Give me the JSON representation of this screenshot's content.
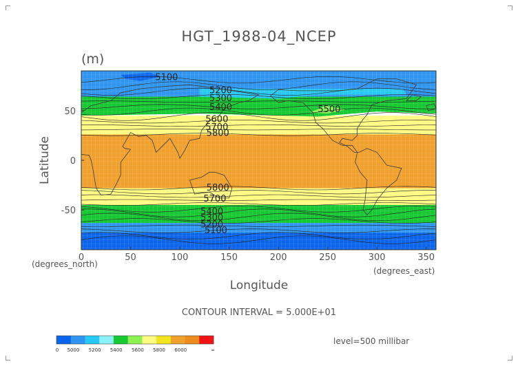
{
  "chart_data": {
    "type": "heatmap",
    "title": "HGT_1988-04_NCEP",
    "units": "(m)",
    "xlabel": "Longitude",
    "ylabel": "Latitude",
    "x_unit_label": "(degrees_east)",
    "y_unit_label": "(degrees_north)",
    "xlim": [
      0,
      360
    ],
    "ylim": [
      -90,
      90
    ],
    "x_ticks": [
      0,
      50,
      100,
      150,
      200,
      250,
      300,
      350
    ],
    "y_ticks": [
      50,
      0,
      -50
    ],
    "contour_interval_text": "CONTOUR INTERVAL = 5.000E+01",
    "level_text": "level=500 millibar",
    "contour_labels": [
      {
        "value": "5100",
        "lon": 75,
        "lat": 84
      },
      {
        "value": "5200",
        "lon": 130,
        "lat": 71
      },
      {
        "value": "5300",
        "lon": 130,
        "lat": 63
      },
      {
        "value": "5400",
        "lon": 130,
        "lat": 54
      },
      {
        "value": "5500",
        "lon": 240,
        "lat": 52
      },
      {
        "value": "5600",
        "lon": 126,
        "lat": 42
      },
      {
        "value": "5700",
        "lon": 126,
        "lat": 34
      },
      {
        "value": "5800",
        "lon": 127,
        "lat": 28
      },
      {
        "value": "5800",
        "lon": 127,
        "lat": -27
      },
      {
        "value": "5700",
        "lon": 124,
        "lat": -38
      },
      {
        "value": "5400",
        "lon": 121,
        "lat": -51
      },
      {
        "value": "5300",
        "lon": 121,
        "lat": -57
      },
      {
        "value": "5200",
        "lon": 121,
        "lat": -64
      },
      {
        "value": "5100",
        "lon": 125,
        "lat": -70
      }
    ],
    "colorbar": {
      "colors": [
        "#0a64ec",
        "#2f95f0",
        "#28c8f4",
        "#8cf2f6",
        "#16c832",
        "#8cf254",
        "#fffa82",
        "#f0e61e",
        "#f0a02d",
        "#ec8c1e",
        "#f01414"
      ],
      "labels": [
        "0",
        "5000",
        "5200",
        "5400",
        "5600",
        "5800",
        "6000",
        "∞"
      ]
    }
  }
}
